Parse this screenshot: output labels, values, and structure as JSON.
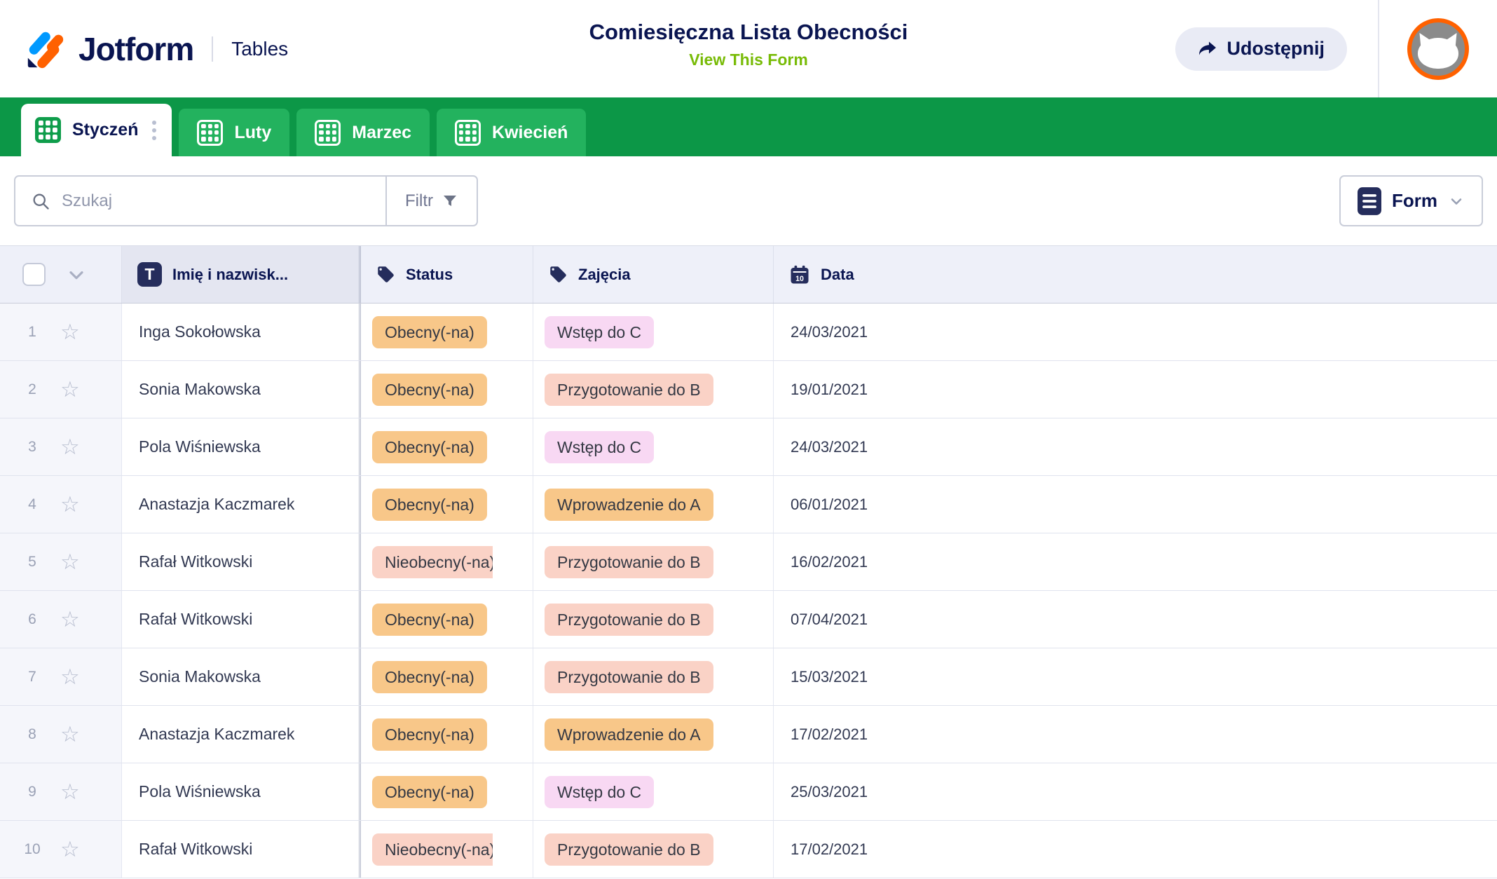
{
  "header": {
    "brand": "Jotform",
    "product": "Tables",
    "title": "Comiesięczna Lista Obecności",
    "view_form_link": "View This Form",
    "share_label": "Udostępnij"
  },
  "tabs": [
    {
      "label": "Styczeń",
      "active": true
    },
    {
      "label": "Luty",
      "active": false
    },
    {
      "label": "Marzec",
      "active": false
    },
    {
      "label": "Kwiecień",
      "active": false
    }
  ],
  "toolbar": {
    "search_placeholder": "Szukaj",
    "filter_label": "Filtr",
    "form_label": "Form"
  },
  "table": {
    "columns": [
      {
        "label": "Imię i nazwisk...",
        "icon": "text-icon"
      },
      {
        "label": "Status",
        "icon": "tag-icon"
      },
      {
        "label": "Zajęcia",
        "icon": "tag-icon"
      },
      {
        "label": "Data",
        "icon": "calendar-icon",
        "calendar_day": "10"
      }
    ],
    "rows": [
      {
        "num": "1",
        "name": "Inga Sokołowska",
        "status": {
          "label": "Obecny(-na)",
          "color": "orange",
          "clipped": false
        },
        "activity": {
          "label": "Wstęp do C",
          "color": "pink"
        },
        "date": "24/03/2021"
      },
      {
        "num": "2",
        "name": "Sonia Makowska",
        "status": {
          "label": "Obecny(-na)",
          "color": "orange",
          "clipped": false
        },
        "activity": {
          "label": "Przygotowanie do B",
          "color": "salmon"
        },
        "date": "19/01/2021"
      },
      {
        "num": "3",
        "name": "Pola Wiśniewska",
        "status": {
          "label": "Obecny(-na)",
          "color": "orange",
          "clipped": false
        },
        "activity": {
          "label": "Wstęp do C",
          "color": "pink"
        },
        "date": "24/03/2021"
      },
      {
        "num": "4",
        "name": "Anastazja Kaczmarek",
        "status": {
          "label": "Obecny(-na)",
          "color": "orange",
          "clipped": false
        },
        "activity": {
          "label": "Wprowadzenie do A",
          "color": "orange"
        },
        "date": "06/01/2021"
      },
      {
        "num": "5",
        "name": "Rafał Witkowski",
        "status": {
          "label": "Nieobecny(-na)",
          "color": "salmon",
          "clipped": true
        },
        "activity": {
          "label": "Przygotowanie do B",
          "color": "salmon"
        },
        "date": "16/02/2021"
      },
      {
        "num": "6",
        "name": "Rafał Witkowski",
        "status": {
          "label": "Obecny(-na)",
          "color": "orange",
          "clipped": false
        },
        "activity": {
          "label": "Przygotowanie do B",
          "color": "salmon"
        },
        "date": "07/04/2021"
      },
      {
        "num": "7",
        "name": "Sonia Makowska",
        "status": {
          "label": "Obecny(-na)",
          "color": "orange",
          "clipped": false
        },
        "activity": {
          "label": "Przygotowanie do B",
          "color": "salmon"
        },
        "date": "15/03/2021"
      },
      {
        "num": "8",
        "name": "Anastazja Kaczmarek",
        "status": {
          "label": "Obecny(-na)",
          "color": "orange",
          "clipped": false
        },
        "activity": {
          "label": "Wprowadzenie do A",
          "color": "orange"
        },
        "date": "17/02/2021"
      },
      {
        "num": "9",
        "name": "Pola Wiśniewska",
        "status": {
          "label": "Obecny(-na)",
          "color": "orange",
          "clipped": false
        },
        "activity": {
          "label": "Wstęp do C",
          "color": "pink"
        },
        "date": "25/03/2021"
      },
      {
        "num": "10",
        "name": "Rafał Witkowski",
        "status": {
          "label": "Nieobecny(-na)",
          "color": "salmon",
          "clipped": true
        },
        "activity": {
          "label": "Przygotowanie do B",
          "color": "salmon"
        },
        "date": "17/02/2021"
      }
    ]
  },
  "icons": {
    "star_glyph": "☆"
  },
  "colors": {
    "navy": "#0a1551",
    "bar_green": "#0c9747",
    "tab_green": "#23b25e",
    "link_green": "#78bb07",
    "avatar_ring": "#ff6100",
    "badges": {
      "orange": "#F8C789",
      "pink": "#F8D8F3",
      "salmon": "#FAD2C6"
    }
  }
}
